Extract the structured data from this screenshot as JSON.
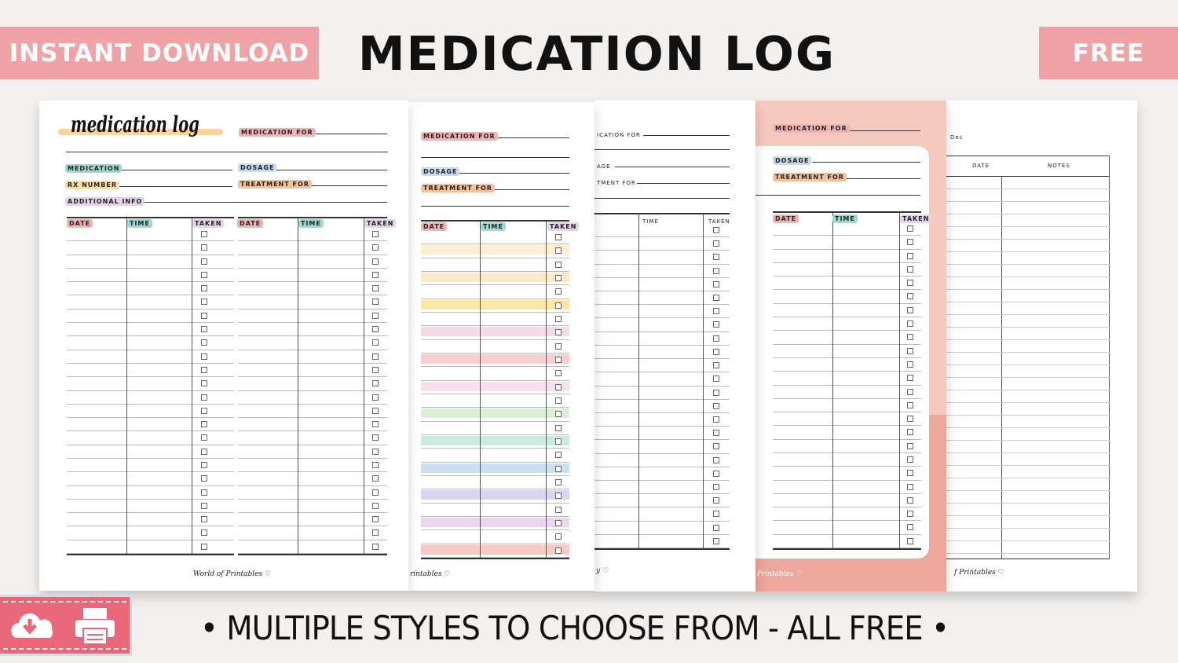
{
  "header": {
    "left_banner": "INSTANT DOWNLOAD",
    "title": "MEDICATION LOG",
    "right_banner": "FREE"
  },
  "colors": {
    "banner": "#f0a3a6",
    "icon_box": "#e8687a",
    "pink_page": "#f6c9bd",
    "salmon": "#eda79d",
    "background": "#f3f0ee"
  },
  "sheet": {
    "script_title": "medication log",
    "medication_for": "MEDICATION FOR",
    "medication": "MEDICATION",
    "dosage": "DOSAGE",
    "rx_number": "RX NUMBER",
    "treatment_for": "TREATMENT FOR",
    "additional_info": "ADDITIONAL INFO",
    "date": "DATE",
    "time": "TIME",
    "taken": "TAKEN",
    "notes": "NOTES",
    "month_fragment": "Dec",
    "brand": "World of Printables ♡"
  },
  "page3_fragments": {
    "medication_for": "ICATION FOR",
    "dosage": "AGE",
    "treatment_for": "TMENT FOR"
  },
  "brand_fragments": [
    "rintables ♡",
    "y ♡",
    "Printables ♡",
    "f Printables ♡"
  ],
  "icons": [
    "cloud-download-icon",
    "printer-icon"
  ],
  "footer": {
    "text": "• MULTIPLE STYLES TO CHOOSE FROM - ALL FREE •"
  }
}
